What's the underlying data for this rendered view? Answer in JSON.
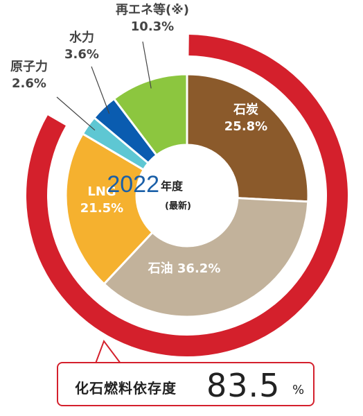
{
  "chart_data": {
    "type": "pie",
    "center_year": "2022",
    "center_year_suffix": "年度",
    "center_note": "(最新)",
    "slices": [
      {
        "label": "石炭",
        "value_text": "25.8%",
        "value": 25.8,
        "color": "#8b5a2b",
        "text_color": "#ffffff"
      },
      {
        "label": "石油",
        "value_text": "36.2%",
        "value": 36.2,
        "color": "#c2b29b",
        "text_color": "#ffffff"
      },
      {
        "label": "LNG",
        "value_text": "21.5%",
        "value": 21.5,
        "color": "#f5b12f",
        "text_color": "#ffffff"
      },
      {
        "label": "原子力",
        "value_text": "2.6%",
        "value": 2.6,
        "color": "#5ec7d3",
        "text_color": "#444444"
      },
      {
        "label": "水力",
        "value_text": "3.6%",
        "value": 3.6,
        "color": "#0a5cb0",
        "text_color": "#444444"
      },
      {
        "label": "再エネ等(※)",
        "value_text": "10.3%",
        "value": 10.3,
        "color": "#8cc63f",
        "text_color": "#444444"
      }
    ],
    "fossil_arc": {
      "label": "化石燃料依存度",
      "value": 83.5,
      "value_text": "83.5",
      "unit": "%",
      "color": "#d4202c"
    }
  },
  "colors": {
    "center_year": "#1a5fa8",
    "text": "#222222"
  }
}
